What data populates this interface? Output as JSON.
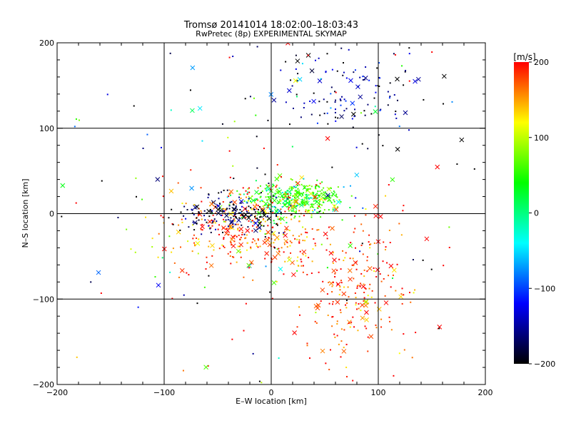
{
  "chart_data": {
    "type": "scatter",
    "title": "Tromsø 20141014 18:02:00–18:03:43",
    "subtitle": "RwPretec (8p) EXPERIMENTAL SKYMAP",
    "xlabel": "E–W location [km]",
    "ylabel": "N–S location [km]",
    "xlim": [
      -200,
      200
    ],
    "ylim": [
      -200,
      200
    ],
    "xticks": [
      "−200",
      "−100",
      "0",
      "100",
      "200"
    ],
    "yticks": [
      "−200",
      "−100",
      "0",
      "100",
      "200"
    ],
    "grid": true,
    "markers": "dots and x crosses",
    "colorbar": {
      "unit_label": "[m/s]",
      "range": [
        -200,
        200
      ],
      "ticks": [
        "200",
        "100",
        "0",
        "−100",
        "−200"
      ],
      "colors_top_to_bottom": [
        "#ff0000",
        "#ffff00",
        "#00ff00",
        "#00ffff",
        "#0000ff",
        "#000000"
      ]
    },
    "clusters": [
      {
        "x": 15,
        "y": 15,
        "spread_x": 22,
        "spread_y": 12,
        "v": 20,
        "v_spread": 40,
        "count": 260
      },
      {
        "x": 40,
        "y": 22,
        "spread_x": 15,
        "spread_y": 6,
        "v": 25,
        "v_spread": 15,
        "count": 90
      },
      {
        "x": -20,
        "y": -20,
        "spread_x": 40,
        "spread_y": 25,
        "v": 170,
        "v_spread": 40,
        "count": 340
      },
      {
        "x": -35,
        "y": 0,
        "spread_x": 25,
        "spread_y": 12,
        "v": -180,
        "v_spread": 30,
        "count": 170
      },
      {
        "x": 75,
        "y": -90,
        "spread_x": 30,
        "spread_y": 45,
        "v": 180,
        "v_spread": 30,
        "count": 230
      },
      {
        "x": 60,
        "y": 140,
        "spread_x": 45,
        "spread_y": 30,
        "v": -160,
        "v_spread": 50,
        "count": 140
      },
      {
        "x": 0,
        "y": 0,
        "spread_x": 140,
        "spread_y": 140,
        "v": 0,
        "v_spread": 200,
        "count": 220
      }
    ]
  }
}
